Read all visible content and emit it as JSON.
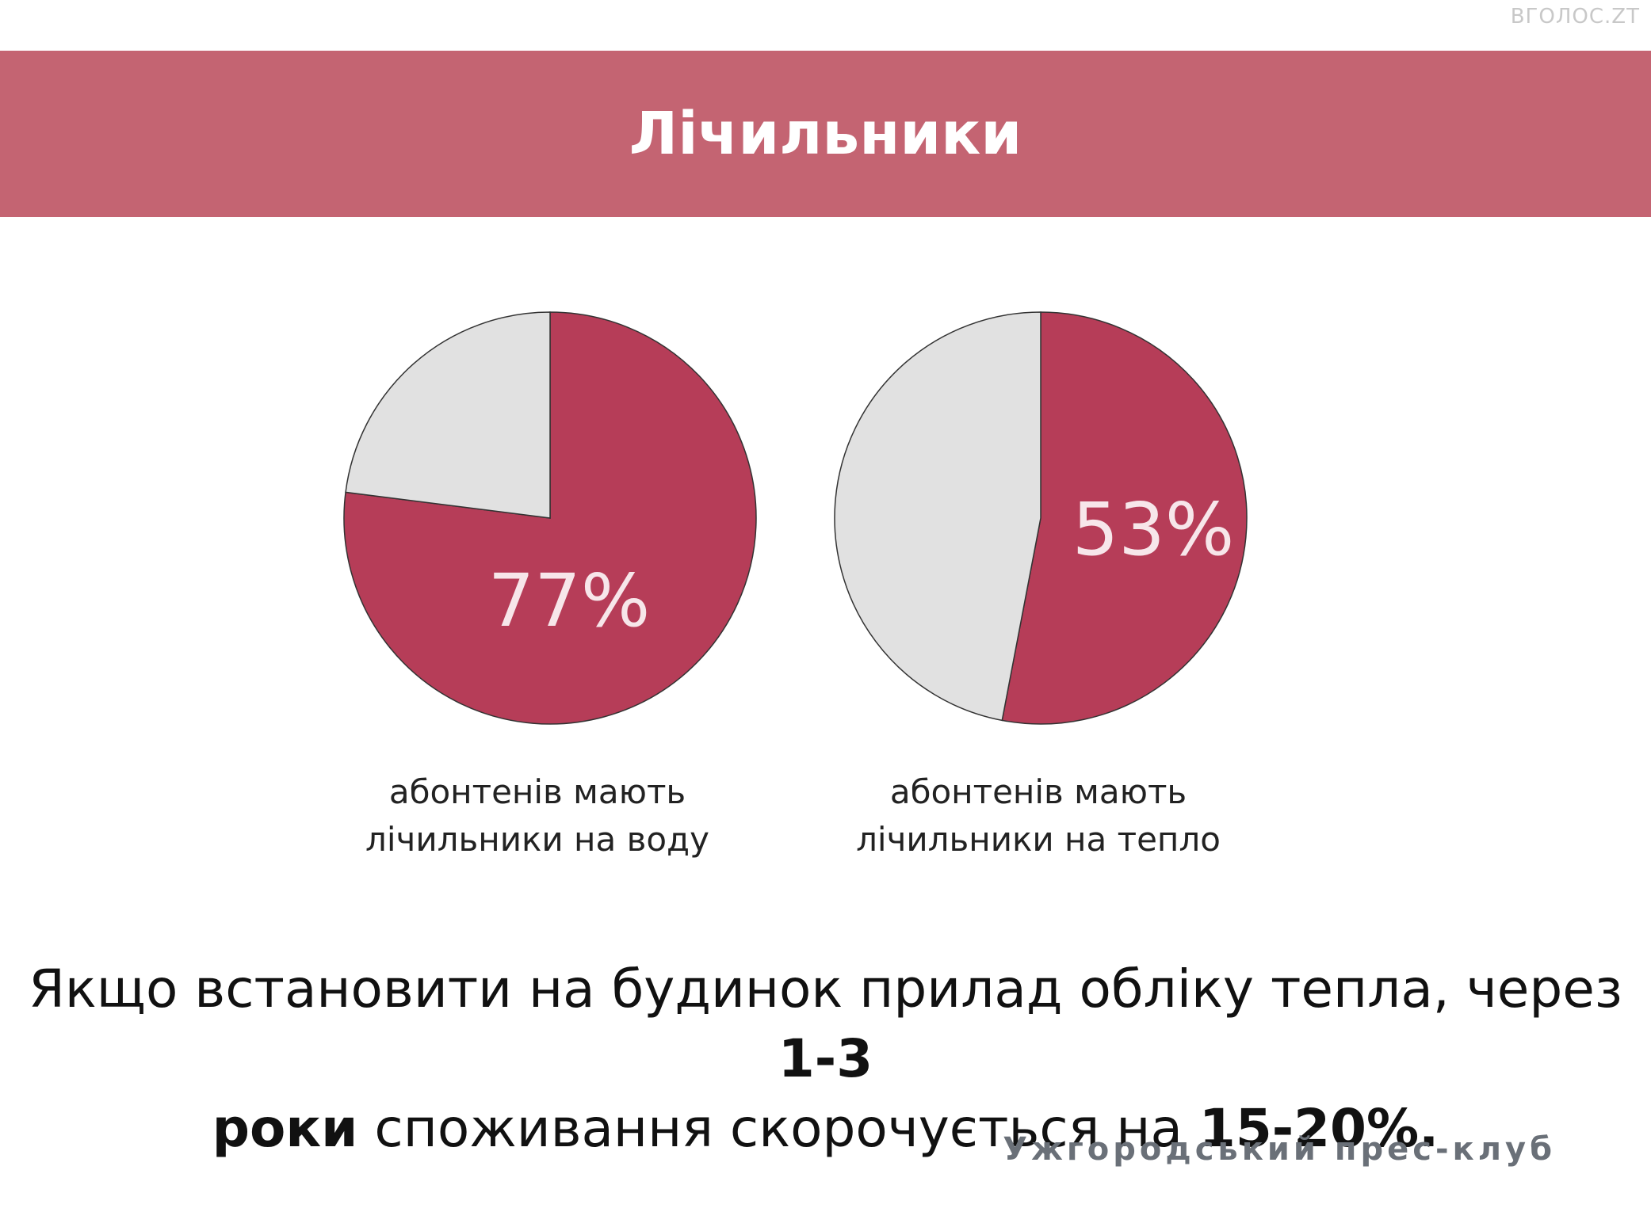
{
  "watermark": "ВГОЛОС.ZT",
  "header": {
    "title": "Лічильники"
  },
  "chart_data": [
    {
      "type": "pie",
      "slices": [
        {
          "label": "",
          "value": 77
        },
        {
          "label": "",
          "value": 23
        }
      ],
      "value_label": "77%",
      "caption_line1": "абонтенів мають",
      "caption_line2": "лічильники на воду",
      "colors": [
        "#b63d58",
        "#e1e1e1"
      ]
    },
    {
      "type": "pie",
      "slices": [
        {
          "label": "",
          "value": 53
        },
        {
          "label": "",
          "value": 47
        }
      ],
      "value_label": "53%",
      "caption_line1": "абонтенів мають",
      "caption_line2": "лічильники на тепло",
      "colors": [
        "#b63d58",
        "#e1e1e1"
      ]
    }
  ],
  "statement": {
    "part1": "Якщо встановити на будинок прилад обліку тепла, через ",
    "bold1": "1-3",
    "bold2": "роки",
    "part2": " споживання скорочується на ",
    "bold3": "15-20%."
  },
  "footer": {
    "text": "Ужгородський прес-клуб"
  },
  "colors": {
    "banner": "#c46472",
    "accent": "#b63d58",
    "rest": "#e1e1e1",
    "label": "#f7e6ea"
  }
}
